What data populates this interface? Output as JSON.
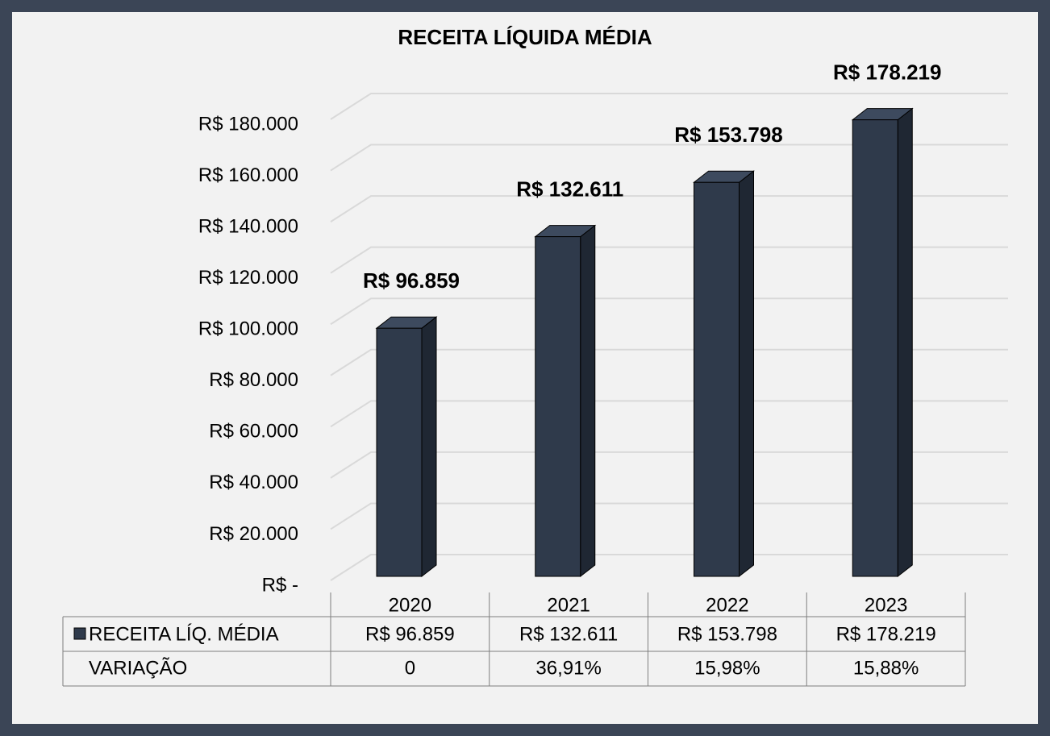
{
  "chart_data": {
    "type": "bar3d",
    "title": "RECEITA LÍQUIDA MÉDIA",
    "categories": [
      "2020",
      "2021",
      "2022",
      "2023"
    ],
    "series": [
      {
        "name": "RECEITA LÍQ. MÉDIA",
        "color": "#2f3a4b",
        "values": [
          96859,
          132611,
          153798,
          178219
        ],
        "value_labels": [
          "R$ 96.859",
          "R$ 132.611",
          "R$ 153.798",
          "R$ 178.219"
        ]
      }
    ],
    "value_label_color": "#00b050",
    "ylim": [
      0,
      180000
    ],
    "yticks": [
      {
        "value": 0,
        "label": "R$ -"
      },
      {
        "value": 20000,
        "label": "R$ 20.000"
      },
      {
        "value": 40000,
        "label": "R$ 40.000"
      },
      {
        "value": 60000,
        "label": "R$ 60.000"
      },
      {
        "value": 80000,
        "label": "R$ 80.000"
      },
      {
        "value": 100000,
        "label": "R$ 100.000"
      },
      {
        "value": 120000,
        "label": "R$ 120.000"
      },
      {
        "value": 140000,
        "label": "R$ 140.000"
      },
      {
        "value": 160000,
        "label": "R$ 160.000"
      },
      {
        "value": 180000,
        "label": "R$ 180.000"
      }
    ],
    "grid": true,
    "data_table": {
      "variation_name": "VARIAÇÃO",
      "variation": [
        "0",
        "36,91%",
        "15,98%",
        "15,88%"
      ]
    }
  }
}
